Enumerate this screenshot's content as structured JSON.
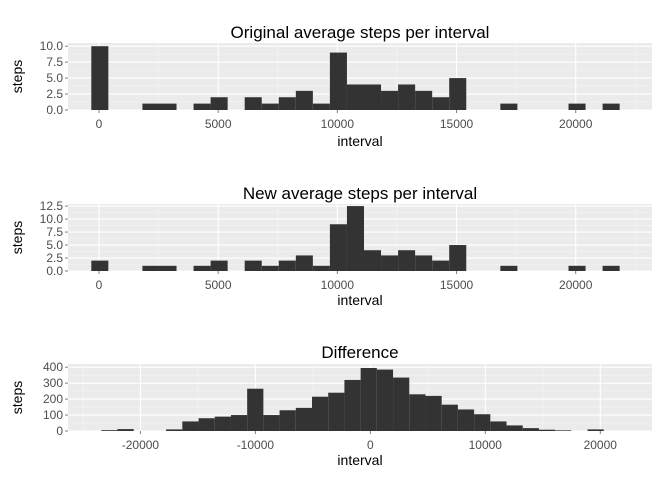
{
  "colors": {
    "panel_bg": "#ebebeb",
    "grid_major": "#ffffff",
    "grid_minor": "#f5f5f5",
    "bar_fill": "#333333",
    "tick_text": "#4d4d4d",
    "text": "#000000"
  },
  "chart_data": [
    {
      "type": "bar",
      "title": "Original average steps per interval",
      "xlabel": "interval",
      "ylabel": "steps",
      "xlim": [
        -1300,
        23200
      ],
      "ylim": [
        0,
        10.5
      ],
      "xticks": [
        0,
        5000,
        10000,
        15000,
        20000
      ],
      "xtick_labels": [
        "0",
        "5000",
        "10000",
        "15000",
        "20000"
      ],
      "yticks": [
        0,
        2.5,
        5,
        7.5,
        10
      ],
      "ytick_labels": [
        "0.0",
        "2.5",
        "5.0",
        "7.5",
        "10.0"
      ],
      "grid": true,
      "bin_width": 715,
      "x": [
        35,
        1465,
        2180,
        2895,
        3610,
        4325,
        5040,
        5755,
        6470,
        7185,
        7900,
        8615,
        9330,
        10045,
        10760,
        11475,
        12190,
        12905,
        13620,
        14335,
        15050,
        15765,
        16480,
        17195,
        17910,
        18625,
        19340,
        20055,
        20770,
        21485
      ],
      "values": [
        10,
        0,
        1,
        1,
        0,
        1,
        2,
        0,
        2,
        1,
        2,
        3,
        1,
        9,
        4,
        4,
        3,
        4,
        3,
        2,
        5,
        0,
        0,
        1,
        0,
        0,
        0,
        1,
        0,
        1
      ]
    },
    {
      "type": "bar",
      "title": "New average steps per interval",
      "xlabel": "interval",
      "ylabel": "steps",
      "xlim": [
        -1300,
        23200
      ],
      "ylim": [
        0,
        12.9
      ],
      "xticks": [
        0,
        5000,
        10000,
        15000,
        20000
      ],
      "xtick_labels": [
        "0",
        "5000",
        "10000",
        "15000",
        "20000"
      ],
      "yticks": [
        0,
        2.5,
        5,
        7.5,
        10,
        12.5
      ],
      "ytick_labels": [
        "0.0",
        "2.5",
        "5.0",
        "7.5",
        "10.0",
        "12.5"
      ],
      "grid": true,
      "bin_width": 715,
      "x": [
        35,
        1465,
        2180,
        2895,
        3610,
        4325,
        5040,
        5755,
        6470,
        7185,
        7900,
        8615,
        9330,
        10045,
        10760,
        11475,
        12190,
        12905,
        13620,
        14335,
        15050,
        15765,
        16480,
        17195,
        17910,
        18625,
        19340,
        20055,
        20770,
        21485
      ],
      "values": [
        2,
        0,
        1,
        1,
        0,
        1,
        2,
        0,
        2,
        1,
        2,
        3,
        1,
        9,
        12.5,
        4,
        3,
        4,
        3,
        2,
        5,
        0,
        0,
        1,
        0,
        0,
        0,
        1,
        0,
        1
      ]
    },
    {
      "type": "bar",
      "title": "Difference",
      "xlabel": "interval",
      "ylabel": "steps",
      "xlim": [
        -26300,
        24500
      ],
      "ylim": [
        0,
        420
      ],
      "xticks": [
        -20000,
        -10000,
        0,
        10000,
        20000
      ],
      "xtick_labels": [
        "-20000",
        "-10000",
        "0",
        "10000",
        "20000"
      ],
      "yticks": [
        0,
        100,
        200,
        300,
        400
      ],
      "ytick_labels": [
        "0",
        "100",
        "200",
        "300",
        "400"
      ],
      "grid": true,
      "bin_width": 1410,
      "x": [
        -22700,
        -21290,
        -19880,
        -18470,
        -17060,
        -15650,
        -14240,
        -12830,
        -11420,
        -10010,
        -8600,
        -7190,
        -5780,
        -4370,
        -2960,
        -1550,
        -140,
        1270,
        2680,
        4090,
        5500,
        6910,
        8320,
        9730,
        11140,
        12550,
        13960,
        15370,
        16780,
        18190,
        19600,
        21010
      ],
      "values": [
        5,
        12,
        0,
        0,
        10,
        60,
        80,
        90,
        100,
        265,
        100,
        130,
        145,
        215,
        240,
        320,
        395,
        385,
        335,
        230,
        220,
        165,
        135,
        105,
        60,
        35,
        18,
        8,
        4,
        0,
        10,
        0
      ]
    }
  ]
}
